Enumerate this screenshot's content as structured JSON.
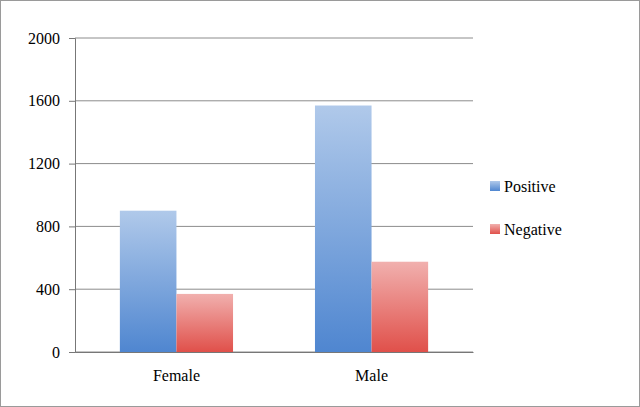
{
  "chart_data": {
    "type": "bar",
    "categories": [
      "Female",
      "Male"
    ],
    "series": [
      {
        "name": "Positive",
        "color": "#4f86d0",
        "values": [
          900,
          1570
        ]
      },
      {
        "name": "Negative",
        "color": "#e0504a",
        "values": [
          370,
          575
        ]
      }
    ],
    "ylim": [
      0,
      2000
    ],
    "yticks": [
      0,
      400,
      800,
      1200,
      1600,
      2000
    ],
    "grid": true,
    "legend": "right"
  }
}
